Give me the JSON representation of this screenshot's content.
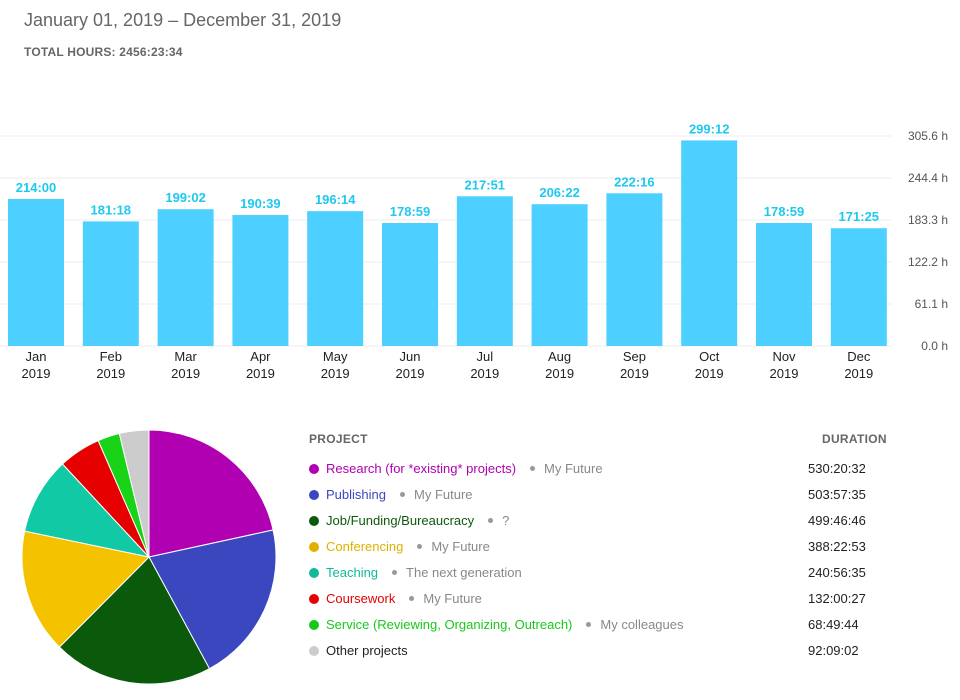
{
  "header": {
    "date_range": "January 01, 2019 – December 31, 2019",
    "total_hours": "TOTAL HOURS: 2456:23:34"
  },
  "chart_data": [
    {
      "type": "bar",
      "categories": [
        "Jan",
        "Feb",
        "Mar",
        "Apr",
        "May",
        "Jun",
        "Jul",
        "Aug",
        "Sep",
        "Oct",
        "Nov",
        "Dec"
      ],
      "year_label": "2019",
      "values": [
        214.0,
        181.3,
        199.03,
        190.65,
        196.23,
        178.98,
        217.85,
        206.37,
        222.27,
        299.2,
        178.98,
        171.42
      ],
      "value_labels": [
        "214:00",
        "181:18",
        "199:02",
        "190:39",
        "196:14",
        "178:59",
        "217:51",
        "206:22",
        "222:16",
        "299:12",
        "178:59",
        "171:25"
      ],
      "y_ticks": [
        "305.6 h",
        "244.4 h",
        "183.3 h",
        "122.2 h",
        "61.1 h",
        "0.0 h"
      ],
      "ylim": [
        0,
        305.6
      ],
      "grid": true,
      "bar_color": "#4dd0ff",
      "label_color": "#1ec8ef"
    },
    {
      "type": "pie",
      "slices": [
        {
          "label": "Research (for *existing* projects)",
          "hours": 530.34,
          "color": "#b100b1"
        },
        {
          "label": "Publishing",
          "hours": 503.96,
          "color": "#3a47bf"
        },
        {
          "label": "Job/Funding/Bureaucracy",
          "hours": 499.78,
          "color": "#0b5a0b"
        },
        {
          "label": "Conferencing",
          "hours": 388.38,
          "color": "#f5c200"
        },
        {
          "label": "Teaching",
          "hours": 240.94,
          "color": "#12c9a6"
        },
        {
          "label": "Coursework",
          "hours": 132.01,
          "color": "#e60000"
        },
        {
          "label": "Service (Reviewing, Organizing, Outreach)",
          "hours": 68.83,
          "color": "#18d318"
        },
        {
          "label": "Other projects",
          "hours": 92.15,
          "color": "#cccccc"
        }
      ]
    }
  ],
  "projects": {
    "header_project": "PROJECT",
    "header_duration": "DURATION",
    "items": [
      {
        "name": "Research (for *existing* projects)",
        "client": "My Future",
        "duration": "530:20:32",
        "color": "#b100b1"
      },
      {
        "name": "Publishing",
        "client": "My Future",
        "duration": "503:57:35",
        "color": "#3a47bf"
      },
      {
        "name": "Job/Funding/Bureaucracy",
        "client": "?",
        "duration": "499:46:46",
        "color": "#0b5a0b"
      },
      {
        "name": "Conferencing",
        "client": "My Future",
        "duration": "388:22:53",
        "color": "#e0b000"
      },
      {
        "name": "Teaching",
        "client": "The next generation",
        "duration": "240:56:35",
        "color": "#12b89a"
      },
      {
        "name": "Coursework",
        "client": "My Future",
        "duration": "132:00:27",
        "color": "#e60000"
      },
      {
        "name": "Service (Reviewing, Organizing, Outreach)",
        "client": "My colleagues",
        "duration": "68:49:44",
        "color": "#18c818"
      },
      {
        "name": "Other projects",
        "client": "",
        "duration": "92:09:02",
        "color": "#cccccc"
      }
    ]
  }
}
